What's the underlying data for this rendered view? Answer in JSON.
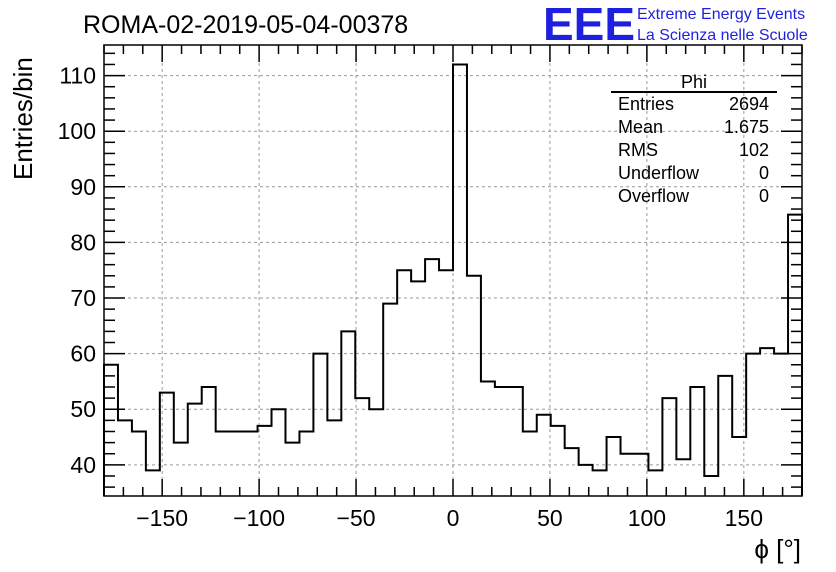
{
  "chart_data": {
    "type": "histogram",
    "title": "ROMA-02-2019-05-04-00378",
    "xlabel": "ϕ [°]",
    "ylabel": "Entries/bin",
    "xlim": [
      -180,
      180
    ],
    "ylim": [
      34.4,
      115.5
    ],
    "grid": true,
    "x_ticks": [
      -150,
      -100,
      -50,
      0,
      50,
      100,
      150
    ],
    "y_ticks": [
      40,
      50,
      60,
      70,
      80,
      90,
      100,
      110
    ],
    "bin_width": 7.2,
    "values": [
      58,
      48,
      46,
      39,
      53,
      44,
      51,
      54,
      46,
      46,
      46,
      47,
      50,
      44,
      46,
      60,
      48,
      64,
      52,
      50,
      69,
      75,
      73,
      77,
      75,
      112,
      74,
      55,
      54,
      54,
      46,
      49,
      47,
      43,
      40,
      39,
      45,
      42,
      42,
      39,
      52,
      41,
      54,
      38,
      56,
      45,
      60,
      61,
      60,
      85
    ]
  },
  "stats_box": {
    "title": "Phi",
    "rows": [
      {
        "label": "Entries",
        "value": "2694"
      },
      {
        "label": "Mean",
        "value": "1.675"
      },
      {
        "label": "RMS",
        "value": "102"
      },
      {
        "label": "Underflow",
        "value": "0"
      },
      {
        "label": "Overflow",
        "value": "0"
      }
    ]
  },
  "logo": {
    "mark": "EEE",
    "line1": "Extreme Energy Events",
    "line2": "La Scienza nelle Scuole",
    "color": "#1f1fe0"
  }
}
